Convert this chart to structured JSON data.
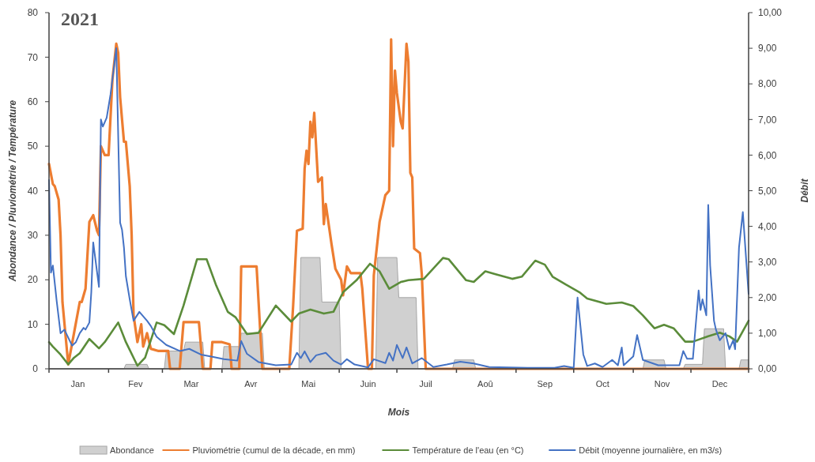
{
  "chart_data": {
    "type": "line",
    "title": "2021",
    "xlabel": "Mois",
    "ylabel": "Abondance / Pluviométrie / Température",
    "y2label": "Débit",
    "xlim": [
      "2021-01-01",
      "2021-12-31"
    ],
    "xticks": [
      {
        "value": "2021-01-01",
        "label": null
      },
      {
        "value": "2021-02-01",
        "label": null
      },
      {
        "value": "2021-03-01",
        "label": null
      },
      {
        "value": "2021-04-01",
        "label": null
      },
      {
        "value": "2021-05-01",
        "label": null
      },
      {
        "value": "2021-06-01",
        "label": null
      },
      {
        "value": "2021-07-01",
        "label": null
      },
      {
        "value": "2021-08-01",
        "label": null
      },
      {
        "value": "2021-09-01",
        "label": null
      },
      {
        "value": "2021-10-01",
        "label": null
      },
      {
        "value": "2021-11-01",
        "label": null
      },
      {
        "value": "2021-12-01",
        "label": null
      },
      {
        "value": "2021-12-31",
        "label": null
      },
      {
        "value": "2021-01-16",
        "label": "Jan"
      },
      {
        "value": "2021-02-15",
        "label": "Fev"
      },
      {
        "value": "2021-03-16",
        "label": "Mar"
      },
      {
        "value": "2021-04-16",
        "label": "Avr"
      },
      {
        "value": "2021-05-16",
        "label": "Mai"
      },
      {
        "value": "2021-06-16",
        "label": "Juin"
      },
      {
        "value": "2021-07-16",
        "label": "Juil"
      },
      {
        "value": "2021-08-16",
        "label": "Aoû"
      },
      {
        "value": "2021-09-16",
        "label": "Sep"
      },
      {
        "value": "2021-10-16",
        "label": "Oct"
      },
      {
        "value": "2021-11-16",
        "label": "Nov"
      },
      {
        "value": "2021-12-16",
        "label": "Dec"
      }
    ],
    "ylim": [
      0,
      80
    ],
    "yticks": [
      0,
      10,
      20,
      30,
      40,
      50,
      60,
      70,
      80
    ],
    "y2lim": [
      0,
      10
    ],
    "y2ticks": [
      {
        "value": 0,
        "label": "0,00"
      },
      {
        "value": 1,
        "label": "1,00"
      },
      {
        "value": 2,
        "label": "2,00"
      },
      {
        "value": 3,
        "label": "3,00"
      },
      {
        "value": 4,
        "label": "4,00"
      },
      {
        "value": 5,
        "label": "5,00"
      },
      {
        "value": 6,
        "label": "6,00"
      },
      {
        "value": 7,
        "label": "7,00"
      },
      {
        "value": 8,
        "label": "8,00"
      },
      {
        "value": 9,
        "label": "9,00"
      },
      {
        "value": 10,
        "label": "10,00"
      }
    ],
    "grid": false,
    "legend": "bottom",
    "marker": "none",
    "series": [
      {
        "name": "Abondance",
        "type": "area",
        "color": "#d0d0d0",
        "x": [
          "2021-01-01",
          "2021-02-09",
          "2021-02-10",
          "2021-02-21",
          "2021-02-22",
          "2021-03-02",
          "2021-03-03",
          "2021-03-12",
          "2021-03-13",
          "2021-03-22",
          "2021-03-23",
          "2021-04-01",
          "2021-04-02",
          "2021-04-10",
          "2021-04-11",
          "2021-04-22",
          "2021-04-23",
          "2021-05-11",
          "2021-05-12",
          "2021-05-22",
          "2021-05-23",
          "2021-06-01",
          "2021-06-02",
          "2021-06-20",
          "2021-06-21",
          "2021-07-01",
          "2021-07-02",
          "2021-07-11",
          "2021-07-12",
          "2021-07-30",
          "2021-07-31",
          "2021-08-10",
          "2021-08-11",
          "2021-11-06",
          "2021-11-07",
          "2021-11-17",
          "2021-11-18",
          "2021-11-27",
          "2021-11-28",
          "2021-12-07",
          "2021-12-08",
          "2021-12-18",
          "2021-12-19",
          "2021-12-26",
          "2021-12-27",
          "2021-12-31"
        ],
        "values": [
          0,
          0,
          1,
          1,
          0,
          0,
          4,
          4,
          6,
          6,
          0,
          0,
          5,
          5,
          8,
          8,
          0,
          0,
          25,
          25,
          15,
          15,
          0,
          0,
          25,
          25,
          16,
          16,
          0,
          0,
          2,
          2,
          0,
          0,
          2,
          2,
          0,
          0,
          1,
          1,
          9,
          9,
          0,
          0,
          2,
          2
        ]
      },
      {
        "name": "Pluviométrie (cumul de la décade, en mm)",
        "color": "#ed7d31",
        "x": [
          "2021-01-01",
          "2021-01-03",
          "2021-01-04",
          "2021-01-06",
          "2021-01-07",
          "2021-01-08",
          "2021-01-11",
          "2021-01-14",
          "2021-01-17",
          "2021-01-18",
          "2021-01-20",
          "2021-01-22",
          "2021-01-24",
          "2021-01-26",
          "2021-01-27",
          "2021-01-28",
          "2021-01-30",
          "2021-02-01",
          "2021-02-03",
          "2021-02-05",
          "2021-02-06",
          "2021-02-07",
          "2021-02-09",
          "2021-02-10",
          "2021-02-12",
          "2021-02-13",
          "2021-02-14",
          "2021-02-16",
          "2021-02-18",
          "2021-02-19",
          "2021-02-21",
          "2021-02-23",
          "2021-02-27",
          "2021-03-04",
          "2021-03-05",
          "2021-03-10",
          "2021-03-12",
          "2021-03-20",
          "2021-03-22",
          "2021-03-26",
          "2021-03-27",
          "2021-04-01",
          "2021-04-05",
          "2021-04-06",
          "2021-04-10",
          "2021-04-11",
          "2021-04-19",
          "2021-04-22",
          "2021-05-06",
          "2021-05-08",
          "2021-05-10",
          "2021-05-13",
          "2021-05-14",
          "2021-05-15",
          "2021-05-16",
          "2021-05-17",
          "2021-05-18",
          "2021-05-19",
          "2021-05-21",
          "2021-05-23",
          "2021-05-24",
          "2021-05-25",
          "2021-05-27",
          "2021-05-28",
          "2021-05-30",
          "2021-06-02",
          "2021-06-03",
          "2021-06-05",
          "2021-06-07",
          "2021-06-12",
          "2021-06-13",
          "2021-06-16",
          "2021-06-18",
          "2021-06-19",
          "2021-06-22",
          "2021-06-25",
          "2021-06-27",
          "2021-06-28",
          "2021-06-29",
          "2021-06-30",
          "2021-07-01",
          "2021-07-03",
          "2021-07-04",
          "2021-07-06",
          "2021-07-07",
          "2021-07-08",
          "2021-07-09",
          "2021-07-10",
          "2021-07-13",
          "2021-07-14",
          "2021-07-16",
          "2021-12-31"
        ],
        "values": [
          46,
          41.5,
          41,
          38,
          30,
          15,
          1,
          8,
          15,
          15,
          18,
          33,
          34.5,
          31,
          30,
          50,
          48,
          48,
          65,
          73,
          71,
          61,
          51,
          51,
          41,
          30,
          12,
          6,
          10,
          5,
          8,
          4.5,
          4,
          4,
          0,
          0,
          10.5,
          10.5,
          0,
          0,
          6,
          6,
          5.5,
          0,
          0,
          23,
          23,
          0,
          0,
          14,
          31,
          31.5,
          45,
          49,
          46,
          55.5,
          52,
          57.5,
          42,
          43,
          32.5,
          37,
          31,
          28,
          22.5,
          20,
          16.5,
          23,
          21.5,
          21.5,
          18,
          0,
          0,
          21,
          33,
          39,
          40,
          74,
          50,
          67,
          62,
          55.5,
          54,
          73,
          69,
          44,
          43,
          27,
          26,
          21,
          0,
          0
        ]
      },
      {
        "name": "Température de l'eau (en °C)",
        "color": "#5b8c3a",
        "x": [
          "2021-01-01",
          "2021-01-03",
          "2021-01-07",
          "2021-01-11",
          "2021-01-14",
          "2021-01-17",
          "2021-01-22",
          "2021-01-27",
          "2021-01-30",
          "2021-02-06",
          "2021-02-10",
          "2021-02-16",
          "2021-02-20",
          "2021-02-26",
          "2021-03-02",
          "2021-03-07",
          "2021-03-12",
          "2021-03-19",
          "2021-03-24",
          "2021-03-29",
          "2021-04-04",
          "2021-04-08",
          "2021-04-14",
          "2021-04-20",
          "2021-04-29",
          "2021-05-07",
          "2021-05-11",
          "2021-05-17",
          "2021-05-24",
          "2021-05-29",
          "2021-06-03",
          "2021-06-10",
          "2021-06-17",
          "2021-06-22",
          "2021-06-27",
          "2021-07-03",
          "2021-07-07",
          "2021-07-15",
          "2021-07-25",
          "2021-07-28",
          "2021-08-06",
          "2021-08-10",
          "2021-08-16",
          "2021-08-21",
          "2021-08-30",
          "2021-09-04",
          "2021-09-11",
          "2021-09-16",
          "2021-09-20",
          "2021-09-27",
          "2021-10-04",
          "2021-10-08",
          "2021-10-18",
          "2021-10-26",
          "2021-11-01",
          "2021-11-06",
          "2021-11-12",
          "2021-11-17",
          "2021-11-22",
          "2021-11-28",
          "2021-12-02",
          "2021-12-10",
          "2021-12-16",
          "2021-12-21",
          "2021-12-25",
          "2021-12-31"
        ],
        "values": [
          6,
          5,
          3.2,
          1,
          2.5,
          3.5,
          6.7,
          4.6,
          6,
          10.4,
          6,
          0.7,
          2.5,
          10.4,
          9.8,
          7.8,
          14.2,
          24.6,
          24.6,
          18.7,
          12.8,
          11.6,
          7.8,
          8.1,
          14.2,
          10.6,
          12.4,
          13.3,
          12.4,
          12.8,
          17.2,
          19.9,
          23.6,
          21.9,
          18,
          19.5,
          19.9,
          20.2,
          24.9,
          24.6,
          19.9,
          19.5,
          21.9,
          21.3,
          20.2,
          20.7,
          24.3,
          23.4,
          20.7,
          18.9,
          17.2,
          15.8,
          14.6,
          14.9,
          14.1,
          12,
          9.1,
          9.9,
          9.1,
          6.1,
          6.1,
          7.3,
          8.1,
          7.3,
          6.1,
          10.8
        ]
      },
      {
        "name": "Débit (moyenne journalière, en m3/s)",
        "axis": "y2",
        "color": "#4472c4",
        "x": [
          "2021-01-01",
          "2021-01-02",
          "2021-01-03",
          "2021-01-05",
          "2021-01-07",
          "2021-01-09",
          "2021-01-13",
          "2021-01-15",
          "2021-01-17",
          "2021-01-19",
          "2021-01-20",
          "2021-01-22",
          "2021-01-23",
          "2021-01-24",
          "2021-01-27",
          "2021-01-28",
          "2021-01-29",
          "2021-01-31",
          "2021-02-02",
          "2021-02-05",
          "2021-02-07",
          "2021-02-08",
          "2021-02-09",
          "2021-02-10",
          "2021-02-12",
          "2021-02-14",
          "2021-02-17",
          "2021-02-21",
          "2021-02-23",
          "2021-02-26",
          "2021-03-03",
          "2021-03-10",
          "2021-03-15",
          "2021-03-21",
          "2021-03-27",
          "2021-04-02",
          "2021-04-09",
          "2021-04-11",
          "2021-04-14",
          "2021-04-20",
          "2021-04-29",
          "2021-05-07",
          "2021-05-10",
          "2021-05-12",
          "2021-05-14",
          "2021-05-17",
          "2021-05-20",
          "2021-05-25",
          "2021-05-29",
          "2021-06-02",
          "2021-06-05",
          "2021-06-09",
          "2021-06-16",
          "2021-06-19",
          "2021-06-25",
          "2021-06-27",
          "2021-06-29",
          "2021-07-01",
          "2021-07-04",
          "2021-07-06",
          "2021-07-09",
          "2021-07-14",
          "2021-07-20",
          "2021-07-27",
          "2021-08-03",
          "2021-08-10",
          "2021-08-18",
          "2021-09-07",
          "2021-09-21",
          "2021-09-26",
          "2021-10-01",
          "2021-10-03",
          "2021-10-06",
          "2021-10-08",
          "2021-10-12",
          "2021-10-16",
          "2021-10-21",
          "2021-10-24",
          "2021-10-26",
          "2021-10-27",
          "2021-11-01",
          "2021-11-03",
          "2021-11-06",
          "2021-11-14",
          "2021-11-25",
          "2021-11-27",
          "2021-11-29",
          "2021-12-02",
          "2021-12-05",
          "2021-12-06",
          "2021-12-07",
          "2021-12-09",
          "2021-12-10",
          "2021-12-11",
          "2021-12-13",
          "2021-12-14",
          "2021-12-16",
          "2021-12-19",
          "2021-12-21",
          "2021-12-23",
          "2021-12-24",
          "2021-12-26",
          "2021-12-28",
          "2021-12-31"
        ],
        "values": [
          5.3,
          2.7,
          2.9,
          1.9,
          1.0,
          1.1,
          0.65,
          0.75,
          1.0,
          1.15,
          1.1,
          1.3,
          2.15,
          3.55,
          2.3,
          7.0,
          6.8,
          7.05,
          7.7,
          9.0,
          4.1,
          3.9,
          3.4,
          2.6,
          1.95,
          1.35,
          1.6,
          1.35,
          1.2,
          0.9,
          0.67,
          0.5,
          0.56,
          0.4,
          0.34,
          0.27,
          0.23,
          0.78,
          0.42,
          0.19,
          0.1,
          0.12,
          0.45,
          0.3,
          0.49,
          0.19,
          0.38,
          0.45,
          0.23,
          0.12,
          0.27,
          0.12,
          0.04,
          0.27,
          0.16,
          0.45,
          0.23,
          0.67,
          0.3,
          0.6,
          0.15,
          0.3,
          0.05,
          0.12,
          0.2,
          0.15,
          0.05,
          0.03,
          0.03,
          0.08,
          0.03,
          2.0,
          0.4,
          0.08,
          0.15,
          0.05,
          0.25,
          0.1,
          0.6,
          0.1,
          0.35,
          0.95,
          0.25,
          0.1,
          0.1,
          0.5,
          0.28,
          0.28,
          2.2,
          1.65,
          1.95,
          1.5,
          4.6,
          2.9,
          1.35,
          1.1,
          0.8,
          1.0,
          0.55,
          0.8,
          0.55,
          3.4,
          4.4,
          2.1
        ]
      }
    ]
  }
}
